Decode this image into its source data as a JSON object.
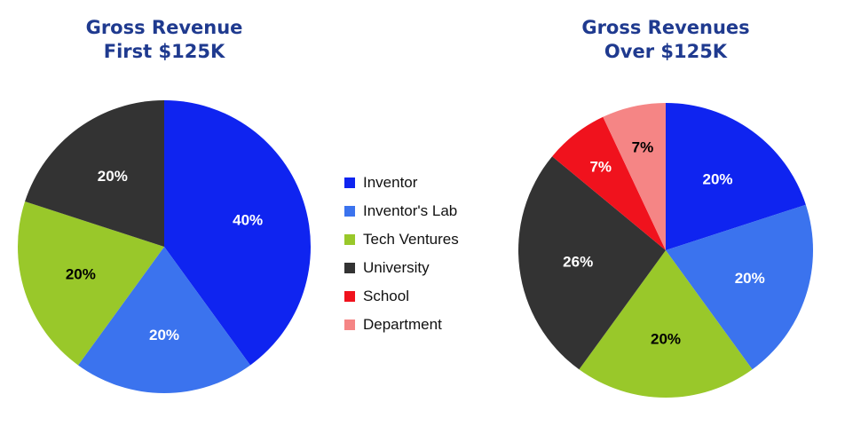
{
  "colors": {
    "Inventor": "#0f24f0",
    "Inventor's Lab": "#3b73ee",
    "Tech Ventures": "#99c82a",
    "University": "#333333",
    "School": "#f0121d",
    "Department": "#f58585"
  },
  "legend": {
    "entries": [
      "Inventor",
      "Inventor's Lab",
      "Tech Ventures",
      "University",
      "School",
      "Department"
    ],
    "placement": "center"
  },
  "chart_data": [
    {
      "type": "pie",
      "title": [
        "Gross Revenue",
        "First $125K"
      ],
      "labels": [
        "Inventor",
        "Inventor's Lab",
        "Tech Ventures",
        "University"
      ],
      "values": [
        40,
        20,
        20,
        20
      ],
      "value_labels": [
        "40%",
        "20%",
        "20%",
        "20%"
      ],
      "label_colors": [
        "#ffffff",
        "#ffffff",
        "#000000",
        "#ffffff"
      ]
    },
    {
      "type": "pie",
      "title": [
        "Gross Revenues",
        "Over $125K"
      ],
      "labels": [
        "Inventor",
        "Inventor's Lab",
        "Tech Ventures",
        "University",
        "School",
        "Department"
      ],
      "values": [
        20,
        20,
        20,
        26,
        7,
        7
      ],
      "value_labels": [
        "20%",
        "20%",
        "20%",
        "26%",
        "7%",
        "7%"
      ],
      "label_colors": [
        "#ffffff",
        "#ffffff",
        "#000000",
        "#ffffff",
        "#ffffff",
        "#000000"
      ]
    }
  ]
}
